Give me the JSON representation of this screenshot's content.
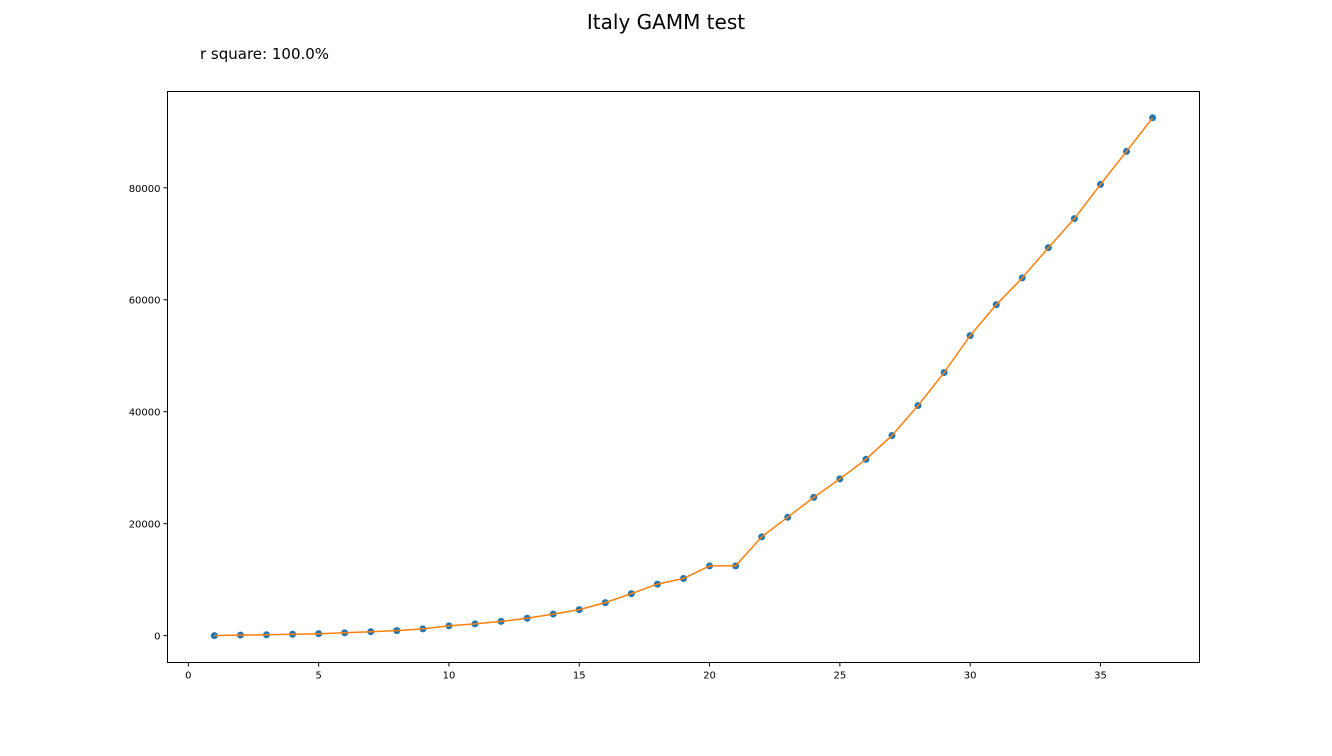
{
  "chart_data": {
    "type": "scatter",
    "title": "Italy GAMM test",
    "subtitle": "r square: 100.0%",
    "xlabel": "",
    "ylabel": "",
    "xlim": [
      -0.8,
      38.8
    ],
    "ylim": [
      -4800,
      97200
    ],
    "xticks": [
      0,
      5,
      10,
      15,
      20,
      25,
      30,
      35
    ],
    "yticks": [
      0,
      20000,
      40000,
      60000,
      80000
    ],
    "grid": false,
    "series": [
      {
        "kind": "points",
        "color": "#1f77b4",
        "x": [
          1,
          2,
          3,
          4,
          5,
          6,
          7,
          8,
          9,
          10,
          11,
          12,
          13,
          14,
          15,
          16,
          17,
          18,
          19,
          20,
          21,
          22,
          23,
          24,
          25,
          26,
          27,
          28,
          29,
          30,
          31,
          32,
          33,
          34,
          35,
          36,
          37
        ],
        "values": [
          0,
          100,
          150,
          250,
          350,
          500,
          700,
          900,
          1200,
          1750,
          2100,
          2550,
          3100,
          3850,
          4650,
          5900,
          7500,
          9200,
          10200,
          12450,
          12450,
          17650,
          21150,
          24700,
          28000,
          31500,
          35750,
          41100,
          47000,
          53600,
          59100,
          63900,
          69300,
          74500,
          80600,
          86500,
          92500
        ]
      },
      {
        "kind": "line",
        "color": "#ff7f0e",
        "x": [
          1,
          2,
          3,
          4,
          5,
          6,
          7,
          8,
          9,
          10,
          11,
          12,
          13,
          14,
          15,
          16,
          17,
          18,
          19,
          20,
          21,
          22,
          23,
          24,
          25,
          26,
          27,
          28,
          29,
          30,
          31,
          32,
          33,
          34,
          35,
          36,
          37
        ],
        "values": [
          0,
          100,
          150,
          250,
          350,
          500,
          700,
          900,
          1200,
          1750,
          2100,
          2550,
          3100,
          3850,
          4650,
          5900,
          7500,
          9200,
          10200,
          12450,
          12450,
          17650,
          21150,
          24700,
          28000,
          31500,
          35750,
          41100,
          47000,
          53600,
          59100,
          63900,
          69300,
          74500,
          80600,
          86500,
          92500
        ]
      }
    ]
  }
}
